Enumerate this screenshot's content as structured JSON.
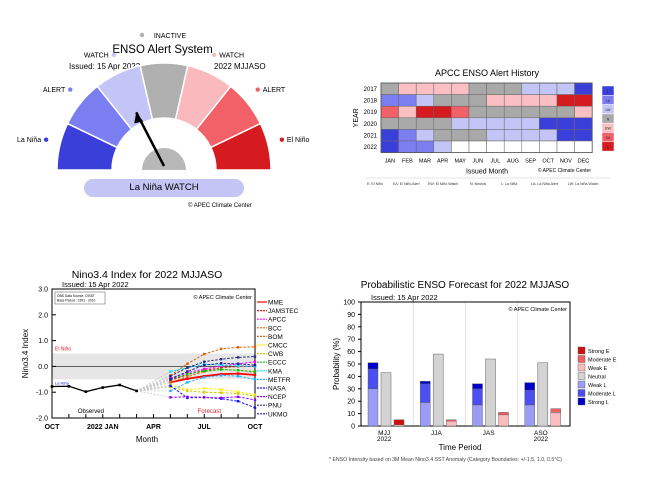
{
  "alert_gauge": {
    "title": "ENSO Alert System",
    "issued": "Issued: 15 Apr 2022",
    "period": "2022 MJJASO",
    "sectors": [
      {
        "label": "La Niña",
        "color": "#3b3fd9",
        "side": "left"
      },
      {
        "label": "ALERT",
        "color": "#7a7ef0",
        "side": "left"
      },
      {
        "label": "WATCH",
        "color": "#c3c5f7",
        "side": "left"
      },
      {
        "label": "INACTIVE",
        "color": "#b0b0b0",
        "side": "top"
      },
      {
        "label": "WATCH",
        "color": "#f9b9bd",
        "side": "right"
      },
      {
        "label": "ALERT",
        "color": "#f36168",
        "side": "right"
      },
      {
        "label": "El Niño",
        "color": "#d51b20",
        "side": "right"
      }
    ],
    "current_state": "La Niña WATCH",
    "current_sector_index": 2,
    "banner_color": "#c4c5f5",
    "credit": "© APEC Climate Center"
  },
  "chart_data": [
    {
      "type": "heatmap",
      "title": "APCC ENSO Alert History",
      "xlabel": "Issued Month",
      "ylabel": "YEAR",
      "x": [
        "JAN",
        "FEB",
        "MAR",
        "APR",
        "MAY",
        "JUN",
        "JUL",
        "AUG",
        "SEP",
        "OCT",
        "NOV",
        "DEC"
      ],
      "y": [
        "2017",
        "2018",
        "2019",
        "2020",
        "2021",
        "2022"
      ],
      "values": [
        [
          "N",
          "EW",
          "EW",
          "EW",
          "EW",
          "N",
          "N",
          "N",
          "LW",
          "LW",
          "LW",
          "L"
        ],
        [
          "LA",
          "LA",
          "LW",
          "N",
          "N",
          "N",
          "EW",
          "EW",
          "EW",
          "EW",
          "E",
          "E"
        ],
        [
          "EA",
          "EW",
          "E",
          "E",
          "EA",
          "N",
          "N",
          "N",
          "N",
          "N",
          "N",
          "EW"
        ],
        [
          "N",
          "N",
          "N",
          "N",
          "LW",
          "LW",
          "LW",
          "LW",
          "LW",
          "L",
          "L",
          "L"
        ],
        [
          "L",
          "LA",
          "LW",
          "N",
          "N",
          "N",
          "LW",
          "LW",
          "LW",
          "LW",
          "L",
          "L"
        ],
        [
          "L",
          "LA",
          "LA",
          "LW",
          "",
          "",
          "",
          "",
          "",
          "",
          "",
          ""
        ]
      ],
      "legend": [
        {
          "code": "L",
          "color": "#3b3fd9"
        },
        {
          "code": "LA",
          "color": "#7a7ef0"
        },
        {
          "code": "LW",
          "color": "#c3c5f7"
        },
        {
          "code": "N",
          "color": "#a9a9a9"
        },
        {
          "code": "EW",
          "color": "#f9bfc3"
        },
        {
          "code": "EA",
          "color": "#f36168"
        },
        {
          "code": "E",
          "color": "#d51b20"
        }
      ],
      "key_text": [
        "E: El Niño",
        "EA: El Niño Alert",
        "EW: El Niño Watch",
        "N: Neutral",
        "L: La Niña",
        "LA: La Niña Alert",
        "LW: La Niña Watch"
      ],
      "credit": "© APEC Climate Center"
    },
    {
      "type": "line",
      "title": "Nino3.4 Index for 2022 MJJASO",
      "subtitle": "Issued: 15 Apr 2022",
      "xlabel": "Month",
      "ylabel": "Nino3.4 Index",
      "ylim": [
        -2.0,
        3.0
      ],
      "yticks": [
        "3.0",
        "2.0",
        "1.0",
        "0.0",
        "-1.0",
        "-2.0"
      ],
      "xticks": [
        "OCT",
        "2022 JAN",
        "APR",
        "JUL",
        "OCT"
      ],
      "info_box": [
        "OBS Data Source: OISST",
        "Base Period : 1991 - 2010"
      ],
      "credit": "© APEC Climate Center",
      "el_nino_label": "El Niño",
      "la_nina_label": "La Niña",
      "observed_label": "Observed",
      "forecast_label": "Forecast",
      "threshold_band": [
        -0.5,
        0.5
      ],
      "observed": {
        "x": [
          0,
          1,
          2,
          3,
          4,
          5
        ],
        "values": [
          -0.78,
          -0.77,
          -0.98,
          -0.82,
          -0.72,
          -0.95
        ]
      },
      "forecast_x": [
        7,
        8,
        9,
        10,
        11,
        12
      ],
      "series": [
        {
          "name": "MME",
          "color": "#ff0000",
          "values": [
            -0.62,
            -0.48,
            -0.38,
            -0.3,
            -0.28,
            -0.33
          ]
        },
        {
          "name": "JAMSTEC",
          "color": "#e01010",
          "values": [
            -0.55,
            -0.32,
            -0.15,
            -0.05,
            0.0,
            0.0
          ]
        },
        {
          "name": "APCC",
          "color": "#ff00ff",
          "values": [
            -0.45,
            -0.25,
            -0.1,
            0.02,
            0.1,
            0.18
          ]
        },
        {
          "name": "BCC",
          "color": "#e06000",
          "values": [
            -0.35,
            0.1,
            0.48,
            0.68,
            0.74,
            0.76
          ]
        },
        {
          "name": "BOM",
          "color": "#d07020",
          "values": [
            -0.62,
            -0.4,
            -0.2,
            -0.12,
            -0.15,
            -0.2
          ]
        },
        {
          "name": "CMCC",
          "color": "#ffee00",
          "values": [
            -0.72,
            -0.9,
            -0.85,
            -0.9,
            -0.98,
            -1.1
          ]
        },
        {
          "name": "CWB",
          "color": "#cccc00",
          "values": [
            -0.8,
            -0.95,
            -1.0,
            -1.02,
            -1.05,
            -1.15
          ]
        },
        {
          "name": "ECCC",
          "color": "#00cc00",
          "values": [
            -0.5,
            -0.3,
            -0.18,
            -0.12,
            -0.15,
            -0.22
          ]
        },
        {
          "name": "KMA",
          "color": "#00e0ff",
          "values": [
            -0.2,
            -0.05,
            0.08,
            0.05,
            0.02,
            0.0
          ]
        },
        {
          "name": "METFR",
          "color": "#20b0ff",
          "values": [
            -0.95,
            -0.62,
            -0.42,
            -0.35,
            -0.38,
            -0.5
          ]
        },
        {
          "name": "NASA",
          "color": "#1010ff",
          "values": [
            -0.75,
            -1.22,
            -1.2,
            -1.25,
            -1.35,
            -1.6
          ]
        },
        {
          "name": "NCEP",
          "color": "#9000ff",
          "values": [
            -1.2,
            -1.18,
            -1.2,
            -1.22,
            -1.18,
            -1.3
          ]
        },
        {
          "name": "PNU",
          "color": "#2a2a80",
          "values": [
            -0.38,
            -0.05,
            0.18,
            0.28,
            0.35,
            0.38
          ]
        },
        {
          "name": "UKMO",
          "color": "#1a1aa0",
          "values": [
            -0.5,
            -0.2,
            0.05,
            0.12,
            0.1,
            0.05
          ]
        }
      ]
    },
    {
      "type": "bar",
      "title": "Probabilistic ENSO Forecast for 2022 MJJASO",
      "subtitle": "Issued: 15 Apr 2022",
      "xlabel": "Time Period",
      "ylabel": "Probability (%)",
      "ylim": [
        0,
        100
      ],
      "yticks": [
        "0",
        "10",
        "20",
        "30",
        "40",
        "50",
        "60",
        "70",
        "80",
        "90",
        "100"
      ],
      "categories": [
        "MJJ\n2022",
        "JJA",
        "JAS",
        "ASO\n2022"
      ],
      "category_lines": [
        [
          "MJJ",
          "2022"
        ],
        [
          "JJA"
        ],
        [
          "JAS"
        ],
        [
          "ASO",
          "2022"
        ]
      ],
      "la_nina_stack": [
        {
          "name": "Weak L",
          "color": "#9a9cf5",
          "values": [
            30,
            19,
            17,
            17
          ]
        },
        {
          "name": "Moderate L",
          "color": "#4b4ff0",
          "values": [
            16,
            15,
            13,
            12
          ]
        },
        {
          "name": "Strong L",
          "color": "#0000c8",
          "values": [
            5,
            2,
            4,
            6
          ]
        }
      ],
      "neutral": {
        "name": "Neutral",
        "color": "#d3d3d3",
        "values": [
          43,
          58,
          54,
          51
        ]
      },
      "el_nino_stack": [
        {
          "name": "Weak E",
          "color": "#fbbcbe",
          "values": [
            1,
            4,
            9,
            11
          ]
        },
        {
          "name": "Moderate E",
          "color": "#f06066",
          "values": [
            0,
            1,
            2,
            3
          ]
        },
        {
          "name": "Strong E",
          "color": "#d01010",
          "values": [
            4,
            0,
            0,
            0
          ]
        }
      ],
      "legend": [
        {
          "name": "Strong E",
          "color": "#d01010"
        },
        {
          "name": "Moderate E",
          "color": "#f06066"
        },
        {
          "name": "Weak E",
          "color": "#fbbcbe"
        },
        {
          "name": "Neutral",
          "color": "#d3d3d3"
        },
        {
          "name": "Weak L",
          "color": "#9a9cf5"
        },
        {
          "name": "Moderate L",
          "color": "#4b4ff0"
        },
        {
          "name": "Strong L",
          "color": "#0000c8"
        }
      ],
      "credit": "© APEC Climate Center",
      "footnote": "* ENSO Intensity based on 3M Mean Nino3.4 SST Anomaly (Category Boundaries: +/-1.5, 1.0, 0.5°C)"
    }
  ]
}
